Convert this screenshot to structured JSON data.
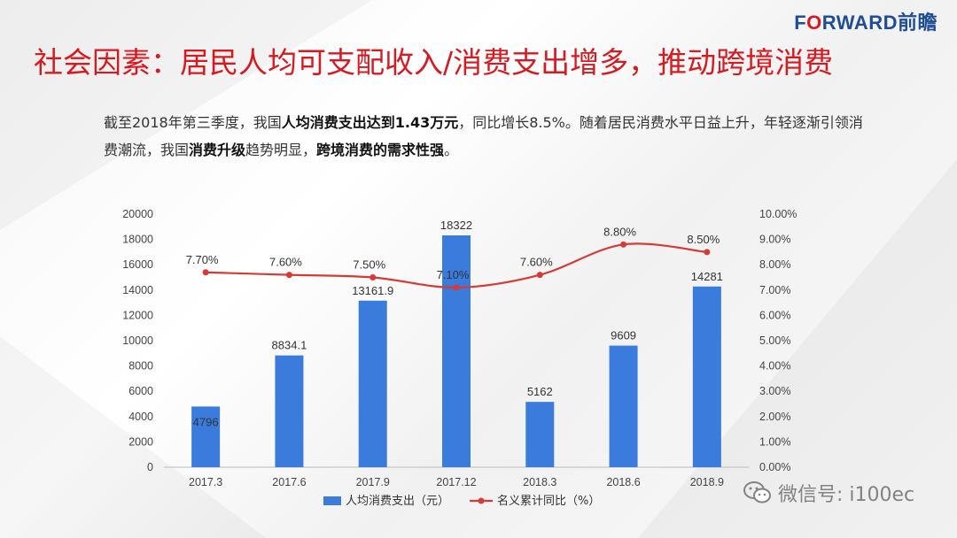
{
  "header": {
    "logo_prefix": "F",
    "logo_o": "O",
    "logo_suffix": "RWARD前瞻",
    "title": "社会因素：居民人均可支配收入/消费支出增多，推动跨境消费"
  },
  "description": {
    "p1": "截至2018年第三季度，我国",
    "b1": "人均消费支出达到1.43万元",
    "p2": "，同比增长8.5%。随着居民消费水平日益上升，年轻逐渐引领消费潮流，我国",
    "b2": "消费升级",
    "p3": "趋势明显，",
    "b3": "跨境消费的需求性强",
    "p4": "。"
  },
  "watermark": {
    "wechat_text": "微信号: i100ec"
  },
  "colors": {
    "bar": "#3a7bdc",
    "line": "#d63a36",
    "title": "#d71920"
  },
  "chart_data": {
    "type": "bar+line",
    "categories": [
      "2017.3",
      "2017.6",
      "2017.9",
      "2017.12",
      "2018.3",
      "2018.6",
      "2018.9"
    ],
    "series": [
      {
        "name": "人均消费支出（元）",
        "type": "bar",
        "axis": "left",
        "values": [
          4796,
          8834.1,
          13161.9,
          18322,
          5162,
          9609,
          14281
        ],
        "labels": [
          "4796",
          "8834.1",
          "13161.9",
          "18322",
          "5162",
          "9609",
          "14281"
        ]
      },
      {
        "name": "名义累计同比（%）",
        "type": "line",
        "axis": "right",
        "values": [
          7.7,
          7.6,
          7.5,
          7.1,
          7.6,
          8.8,
          8.5
        ],
        "labels": [
          "7.70%",
          "7.60%",
          "7.50%",
          "7.10%",
          "7.60%",
          "8.80%",
          "8.50%"
        ]
      }
    ],
    "y_left": {
      "range": [
        0,
        20000
      ],
      "ticks": [
        "0",
        "2000",
        "4000",
        "6000",
        "8000",
        "10000",
        "12000",
        "14000",
        "16000",
        "18000",
        "20000"
      ]
    },
    "y_right": {
      "range": [
        0,
        10
      ],
      "ticks": [
        "0.00%",
        "1.00%",
        "2.00%",
        "3.00%",
        "4.00%",
        "5.00%",
        "6.00%",
        "7.00%",
        "8.00%",
        "9.00%",
        "10.00%"
      ]
    },
    "grid": false,
    "legend": "bottom"
  }
}
